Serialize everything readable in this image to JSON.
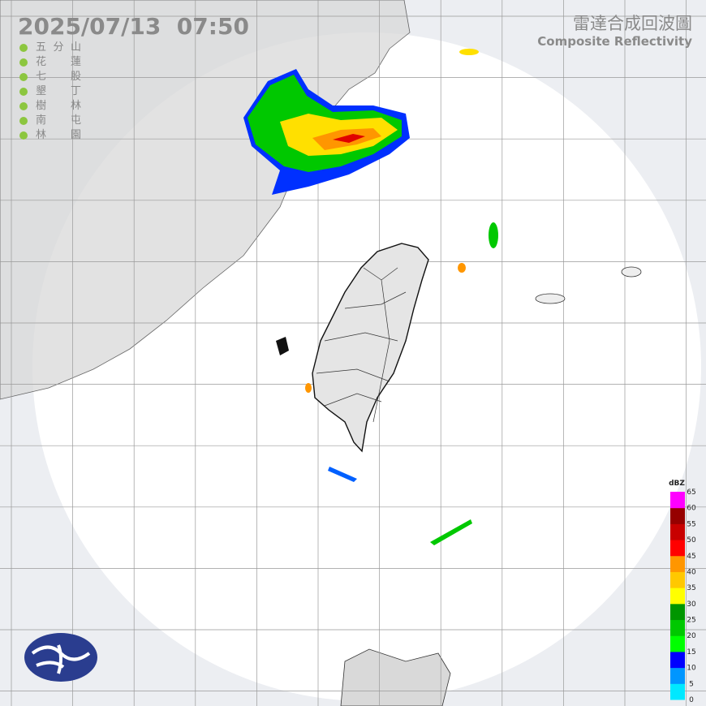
{
  "header": {
    "timestamp": "2025/07/13  07:50",
    "title": "雷達合成回波圖",
    "subtitle": "Composite Reflectivity"
  },
  "stations": [
    "五分山",
    "花蓮",
    "七股",
    "墾丁",
    "樹林",
    "南屯",
    "林園"
  ],
  "legend": {
    "unit": "dBZ",
    "ticks": [
      0,
      5,
      10,
      15,
      20,
      25,
      30,
      35,
      40,
      45,
      50,
      55,
      60,
      65
    ],
    "colors": [
      "#00e8ff",
      "#0096ff",
      "#0000ff",
      "#00ff00",
      "#00c800",
      "#009600",
      "#ffff00",
      "#ffc800",
      "#ff9600",
      "#ff0000",
      "#c80000",
      "#960000",
      "#ff00ff",
      "#9600ff"
    ]
  }
}
